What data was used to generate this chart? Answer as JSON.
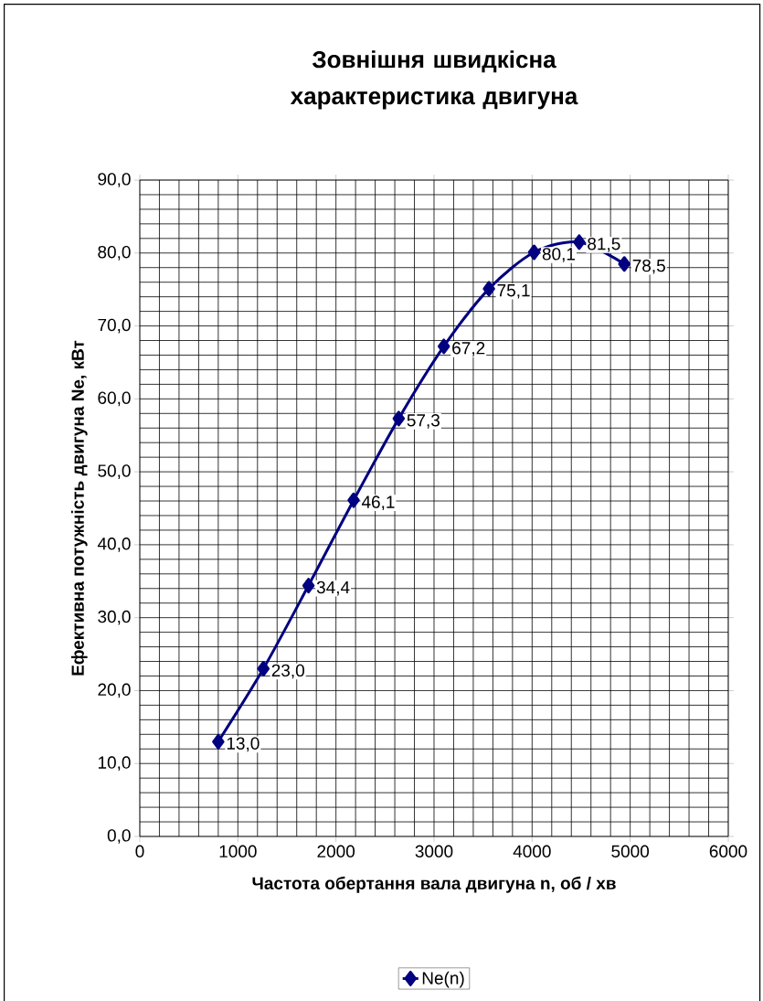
{
  "chart_data": {
    "type": "line",
    "title": "Зовнішня швидкісна характеристика двигуна",
    "xlabel": "Частота обертання вала двигуна n, об / хв",
    "ylabel": "Ефективна потужність двигуна  Ne, кВт",
    "x": [
      800,
      1260,
      1720,
      2180,
      2640,
      3100,
      3560,
      4020,
      4480,
      4940
    ],
    "series": [
      {
        "name": "Ne(n)",
        "color": "#000080",
        "values": [
          13.0,
          23.0,
          34.4,
          46.1,
          57.3,
          67.2,
          75.1,
          80.1,
          81.5,
          78.5
        ],
        "value_labels": [
          "13,0",
          "23,0",
          "34,4",
          "46,1",
          "57,3",
          "67,2",
          "75,1",
          "80,1",
          "81,5",
          "78,5"
        ]
      }
    ],
    "xlim": [
      0,
      6000
    ],
    "xticks": [
      0,
      1000,
      2000,
      3000,
      4000,
      5000,
      6000
    ],
    "ylim": [
      0,
      90
    ],
    "yticks": [
      {
        "value": 0,
        "label": "0,0"
      },
      {
        "value": 10,
        "label": "10,0"
      },
      {
        "value": 20,
        "label": "20,0"
      },
      {
        "value": 30,
        "label": "30,0"
      },
      {
        "value": 40,
        "label": "40,0"
      },
      {
        "value": 50,
        "label": "50,0"
      },
      {
        "value": 60,
        "label": "60,0"
      },
      {
        "value": 70,
        "label": "70,0"
      },
      {
        "value": 80,
        "label": "80,0"
      },
      {
        "value": 90,
        "label": "90,0"
      }
    ],
    "grid": true,
    "legend": "bottom",
    "marker": "diamond",
    "line_style": "solid"
  }
}
